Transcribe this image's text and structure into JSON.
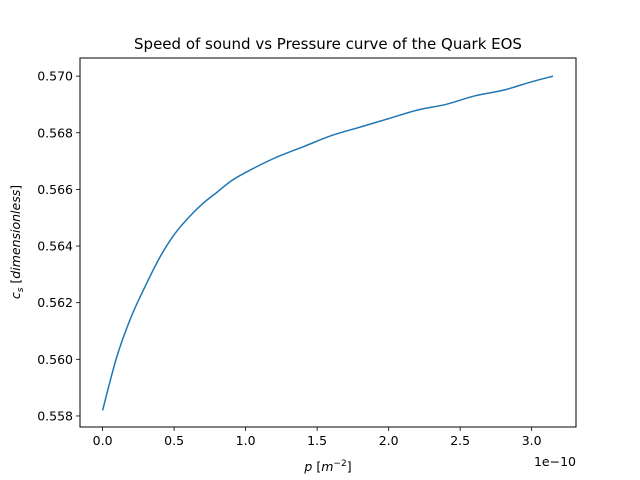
{
  "chart_data": {
    "type": "line",
    "title": "Speed of sound vs Pressure curve of the Quark EOS",
    "xlabel": {
      "var": "p",
      "unit_open": " [",
      "unit_base": "m",
      "unit_exp": "−2",
      "unit_close": "]"
    },
    "ylabel": {
      "var": "c",
      "sub": "s",
      "unit_open": " [",
      "unit_word": "dimensionless",
      "unit_close": "]"
    },
    "x_offset_label": "1e−10",
    "x_scale_exponent": -10,
    "xlim": [
      -1.58e-11,
      3.31e-10
    ],
    "ylim": [
      0.55761,
      0.57064
    ],
    "x_ticks": [
      0,
      5e-11,
      1e-10,
      1.5e-10,
      2e-10,
      2.5e-10,
      3e-10
    ],
    "x_tick_labels": [
      "0.0",
      "0.5",
      "1.0",
      "1.5",
      "2.0",
      "2.5",
      "3.0"
    ],
    "y_ticks": [
      0.558,
      0.56,
      0.562,
      0.564,
      0.566,
      0.568,
      0.57
    ],
    "y_tick_labels": [
      "0.558",
      "0.560",
      "0.562",
      "0.564",
      "0.566",
      "0.568",
      "0.570"
    ],
    "grid": false,
    "series": [
      {
        "color": "#1f77b4",
        "x": [
          0,
          1e-11,
          2e-11,
          3e-11,
          4e-11,
          5e-11,
          6e-11,
          7e-11,
          8e-11,
          9e-11,
          1e-10,
          1.2e-10,
          1.4e-10,
          1.6e-10,
          1.8e-10,
          2e-10,
          2.2e-10,
          2.4e-10,
          2.6e-10,
          2.8e-10,
          3e-10,
          3.15e-10
        ],
        "y": [
          0.5582,
          0.5601,
          0.5615,
          0.5626,
          0.5636,
          0.5644,
          0.565,
          0.5655,
          0.5659,
          0.5663,
          0.5666,
          0.5671,
          0.5675,
          0.5679,
          0.5682,
          0.5685,
          0.5688,
          0.569,
          0.5693,
          0.5695,
          0.5698,
          0.57
        ]
      }
    ]
  }
}
